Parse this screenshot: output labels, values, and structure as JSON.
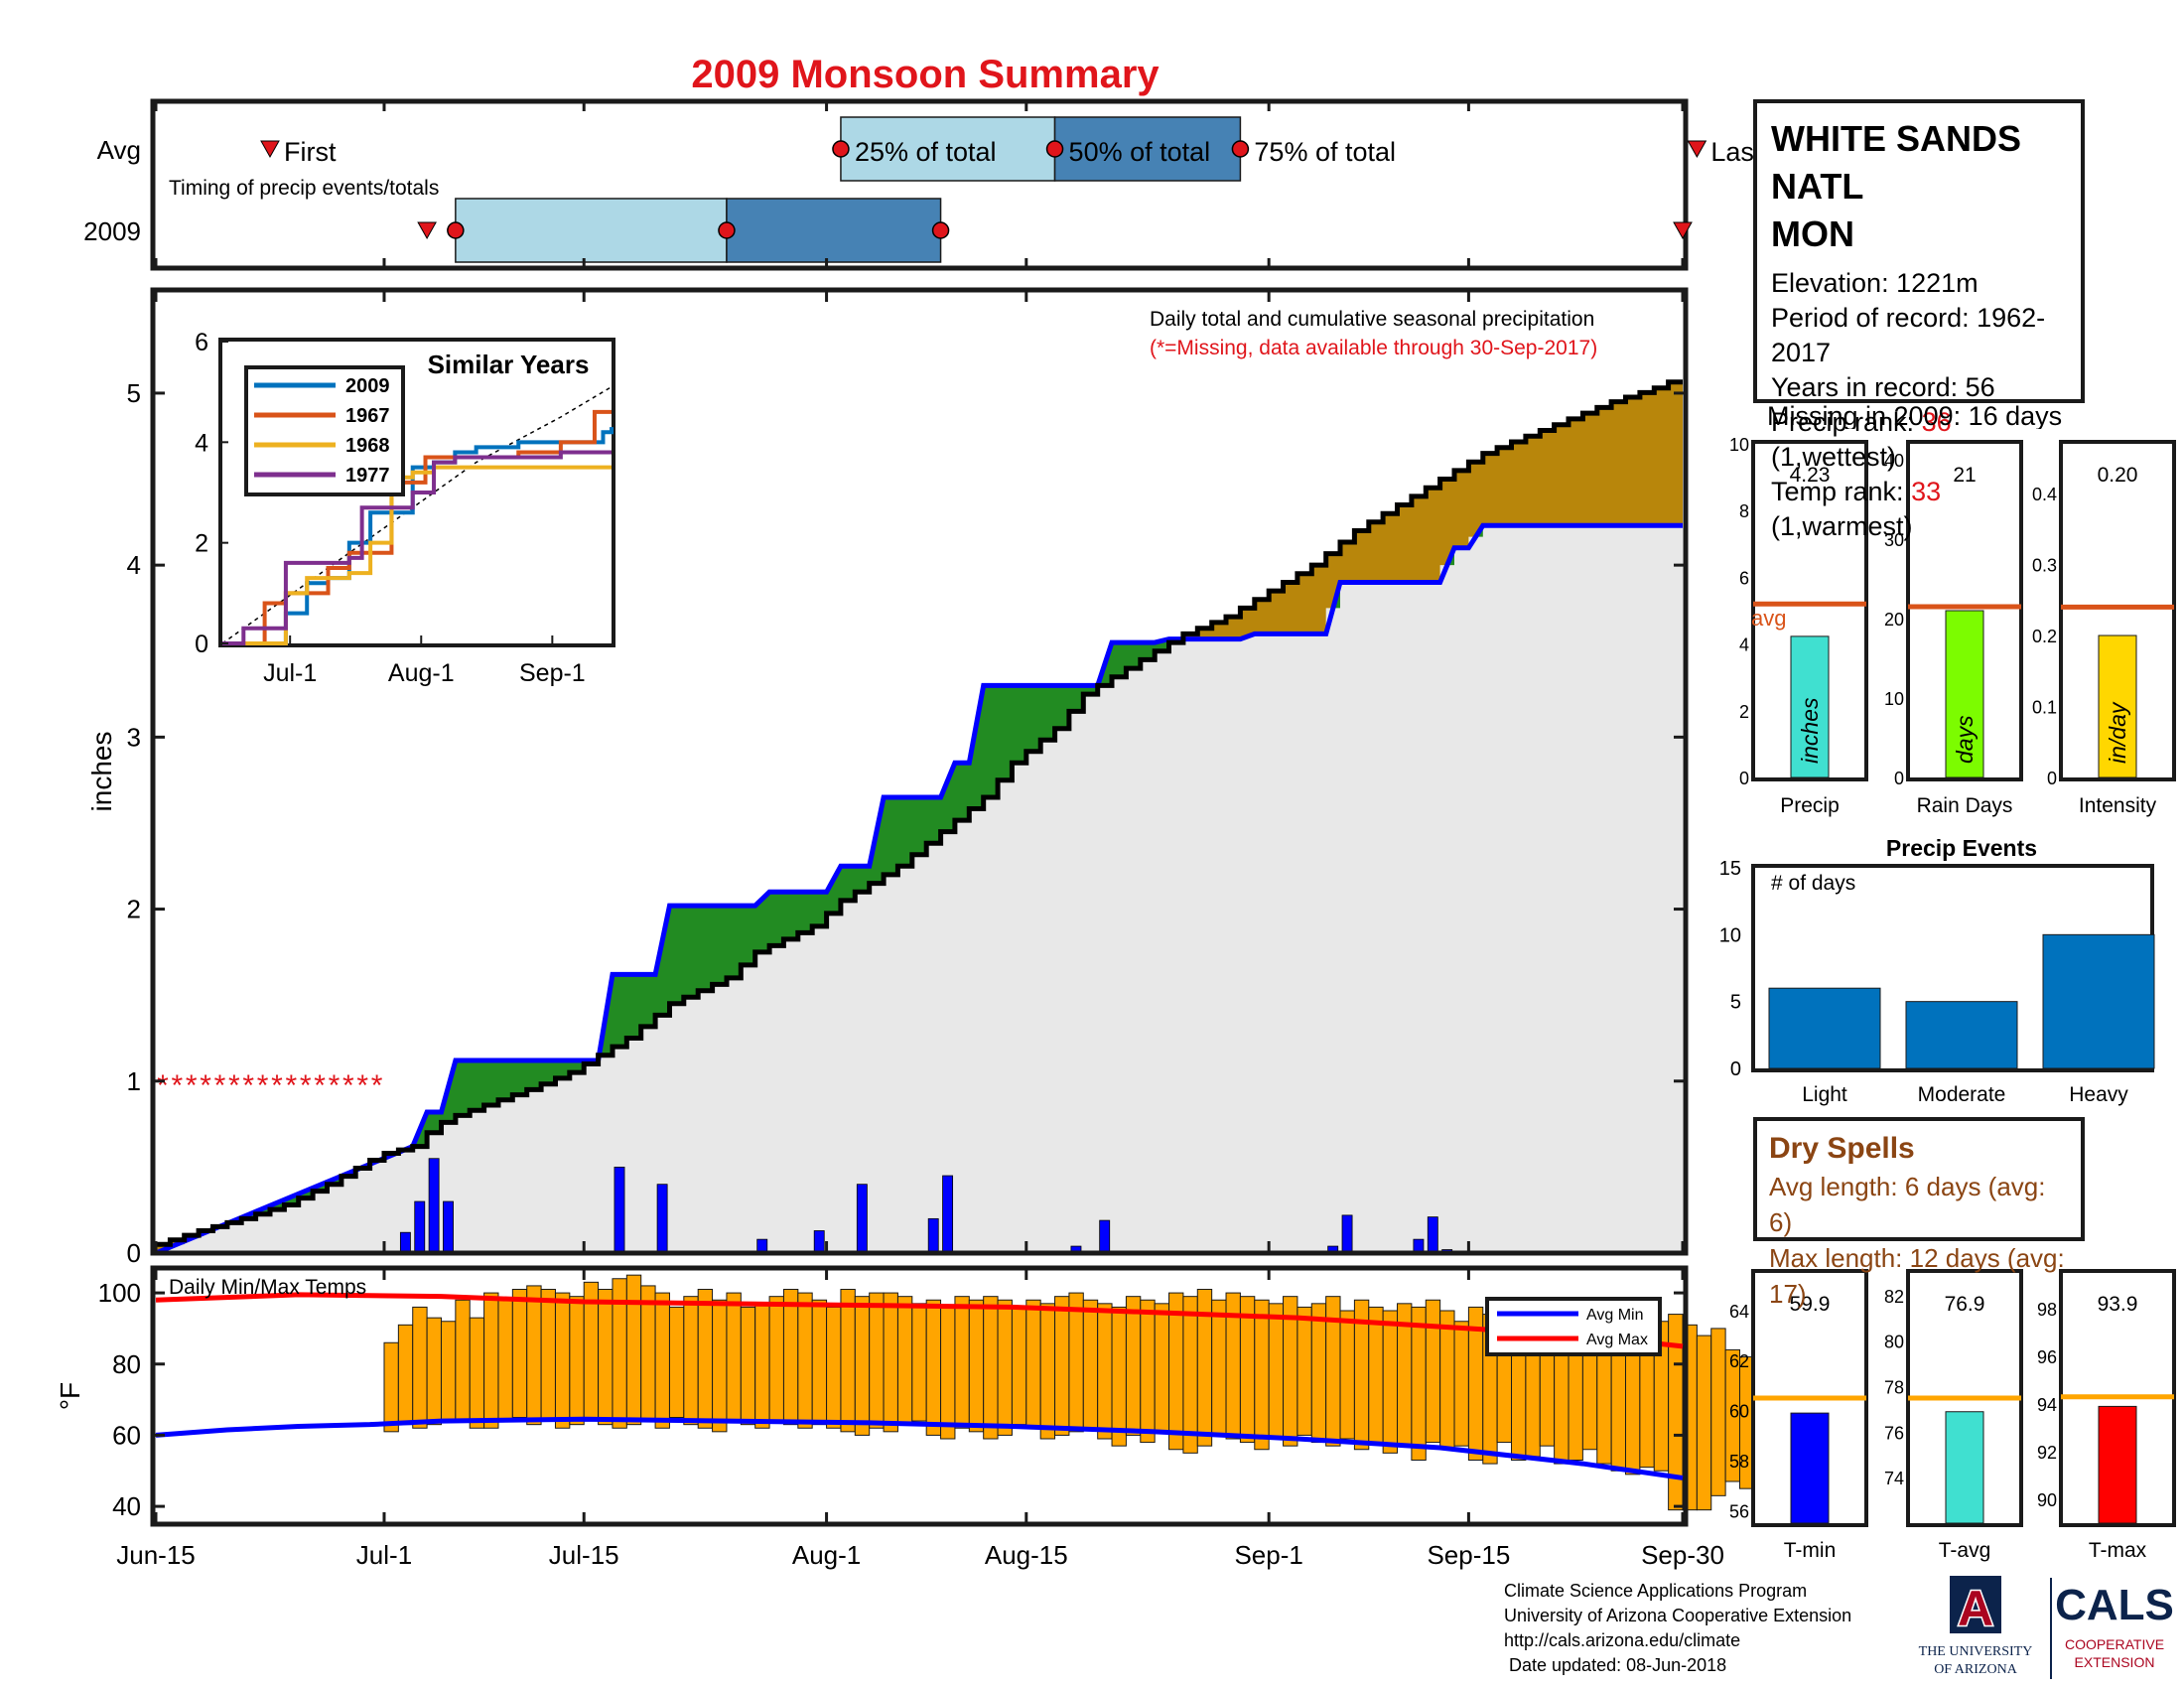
{
  "title": "2009 Monsoon Summary",
  "station": {
    "name_line1": "WHITE SANDS NATL",
    "name_line2": "MON",
    "elevation_label": "Elevation: 1221m",
    "period_label": "Period of record: 1962-2017",
    "years_label": "Years in record: 56",
    "precip_rank_prefix": "Precip rank: ",
    "precip_rank_value": "36",
    "precip_rank_suffix": " (1,wettest)",
    "temp_rank_prefix": "Temp rank: ",
    "temp_rank_value": "33",
    "temp_rank_suffix": " (1,warmest)",
    "missing_label": "Missing in 2009: 16 days"
  },
  "timing": {
    "row_labels": [
      "Avg",
      "2009"
    ],
    "caption": "Timing of precip events/totals",
    "first_label": "First",
    "last_label": "Last",
    "p25_label": "25% of total",
    "p50_label": "50% of total",
    "p75_label": "75% of total",
    "avg": {
      "first": 8,
      "p25": 48,
      "p50": 63,
      "p75": 76,
      "last": 108
    },
    "y2009": {
      "first": 19,
      "p25": 21,
      "p50": 40,
      "p75": 55,
      "last": 107
    }
  },
  "main_chart": {
    "ylabel": "inches",
    "y_ticks": [
      "0",
      "1",
      "2",
      "3",
      "4",
      "5"
    ],
    "x_ticks": [
      "Jun-15",
      "Jul-1",
      "Jul-15",
      "Aug-1",
      "Aug-15",
      "Sep-1",
      "Sep-15",
      "Sep-30"
    ],
    "caption_line1": "Daily total and cumulative seasonal precipitation",
    "caption_line2": "(*=Missing, data available through 30-Sep-2017)",
    "missing_marker": "*"
  },
  "inset": {
    "title": "Similar Years",
    "y_ticks": [
      "0",
      "2",
      "4",
      "6"
    ],
    "x_ticks": [
      "Jul-1",
      "Aug-1",
      "Sep-1"
    ],
    "legend": [
      "2009",
      "1967",
      "1968",
      "1977"
    ]
  },
  "temps": {
    "caption": "Daily Min/Max Temps",
    "ylabel": "°F",
    "y_ticks": [
      "40",
      "60",
      "80",
      "100"
    ],
    "legend_min": "Avg Min",
    "legend_max": "Avg Max"
  },
  "mini_bars": [
    {
      "label": "Precip",
      "value_text": "4.23",
      "bar_text": "inches",
      "avg_text": "avg",
      "y_ticks": [
        "0",
        "2",
        "4",
        "6",
        "8",
        "10"
      ]
    },
    {
      "label": "Rain Days",
      "value_text": "21",
      "bar_text": "days",
      "y_ticks": [
        "0",
        "10",
        "20",
        "30",
        "40"
      ]
    },
    {
      "label": "Intensity",
      "value_text": "0.20",
      "bar_text": "in/day",
      "y_ticks": [
        "0",
        "0.1",
        "0.2",
        "0.3",
        "0.4"
      ]
    }
  ],
  "events": {
    "title": "Precip Events",
    "caption": "# of days",
    "y_ticks": [
      "0",
      "5",
      "10",
      "15"
    ],
    "categories": [
      "Light",
      "Moderate",
      "Heavy"
    ]
  },
  "temp_bars": [
    {
      "label": "T-min",
      "value_text": "59.9",
      "y_ticks": [
        "56",
        "58",
        "60",
        "62",
        "64"
      ]
    },
    {
      "label": "T-avg",
      "value_text": "76.9",
      "y_ticks": [
        "74",
        "76",
        "78",
        "80",
        "82"
      ]
    },
    {
      "label": "T-max",
      "value_text": "93.9",
      "y_ticks": [
        "90",
        "92",
        "94",
        "96",
        "98"
      ]
    }
  ],
  "dry_spells": {
    "title": "Dry Spells",
    "avg_line": "Avg length: 6 days (avg: 6)",
    "max_line": "Max length: 12 days (avg: 17)"
  },
  "credits": {
    "line1": "Climate Science Applications Program",
    "line2": "University of Arizona Cooperative Extension",
    "line3": "http://cals.arizona.edu/climate",
    "line4": " Date updated: 08-Jun-2018"
  },
  "logos": {
    "ua_letter": "A",
    "ua_line1": "THE UNIVERSITY",
    "ua_line2": "OF ARIZONA",
    "cals_word": "CALS",
    "cals_line1": "COOPERATIVE",
    "cals_line2": "EXTENSION"
  },
  "colors": {
    "title_red": "#e0151b",
    "light_blue": "#add8e6",
    "steel_blue": "#4682b4",
    "cum_fill_brown": "#b8860b",
    "cum_fill_green": "#228b22",
    "avg_fill_grey": "#e8e8e8",
    "avg_line_blue": "#0000ff",
    "daily_bar_blue": "#0000ff",
    "temp_bar_orange": "#ffa500",
    "avg_max_red": "#ff0000",
    "avg_min_blue": "#0000ff",
    "avg_marker_orange": "#d95319",
    "ua_navy": "#0c234b",
    "ua_red": "#ab0520"
  },
  "chart_data": [
    {
      "type": "area",
      "title": "Daily total and cumulative seasonal precipitation",
      "ylabel": "inches",
      "ylim": [
        0,
        5.6
      ],
      "x_start": "Jun-15",
      "x_end": "Sep-30",
      "series": [
        {
          "name": "",
          "x": [
            0,
            3,
            6,
            9,
            12,
            15,
            16,
            18,
            19,
            20,
            21,
            26,
            29,
            33,
            36,
            40,
            42,
            46,
            48,
            52,
            55,
            58,
            60,
            63,
            65,
            68,
            70,
            72,
            75,
            78,
            81,
            84,
            87,
            90,
            93,
            96,
            99,
            102,
            105,
            107
          ],
          "y": [
            0.05,
            0.13,
            0.2,
            0.28,
            0.4,
            0.54,
            0.58,
            0.62,
            0.7,
            0.76,
            0.8,
            0.95,
            1.05,
            1.25,
            1.45,
            1.6,
            1.75,
            1.9,
            2.05,
            2.25,
            2.45,
            2.65,
            2.85,
            3.05,
            3.25,
            3.4,
            3.5,
            3.6,
            3.7,
            3.85,
            4.0,
            4.2,
            4.35,
            4.5,
            4.65,
            4.75,
            4.85,
            4.95,
            5.03,
            5.1
          ]
        },
        {
          "name": "",
          "x": [
            0,
            18,
            19,
            20,
            21,
            31,
            32,
            35,
            36,
            42,
            43,
            47,
            48,
            50,
            51,
            55,
            56,
            57,
            58,
            66,
            67,
            70,
            71,
            76,
            77,
            82,
            83,
            90,
            91,
            92,
            93,
            107
          ],
          "y": [
            0.0,
            0.62,
            0.82,
            0.82,
            1.12,
            1.12,
            1.62,
            1.62,
            2.02,
            2.02,
            2.1,
            2.1,
            2.25,
            2.25,
            2.65,
            2.65,
            2.85,
            2.85,
            3.3,
            3.3,
            3.55,
            3.55,
            3.57,
            3.57,
            3.6,
            3.6,
            3.9,
            3.9,
            4.1,
            4.1,
            4.23,
            4.23
          ]
        }
      ],
      "daily_precip": [
        {
          "x": 17,
          "y": 0.12
        },
        {
          "x": 18,
          "y": 0.3
        },
        {
          "x": 19,
          "y": 0.55
        },
        {
          "x": 20,
          "y": 0.3
        },
        {
          "x": 32,
          "y": 0.5
        },
        {
          "x": 35,
          "y": 0.4
        },
        {
          "x": 42,
          "y": 0.08
        },
        {
          "x": 46,
          "y": 0.13
        },
        {
          "x": 49,
          "y": 0.4
        },
        {
          "x": 54,
          "y": 0.2
        },
        {
          "x": 55,
          "y": 0.45
        },
        {
          "x": 64,
          "y": 0.04
        },
        {
          "x": 66,
          "y": 0.19
        },
        {
          "x": 77,
          "y": 0.01
        },
        {
          "x": 82,
          "y": 0.04
        },
        {
          "x": 83,
          "y": 0.22
        },
        {
          "x": 88,
          "y": 0.08
        },
        {
          "x": 89,
          "y": 0.21
        },
        {
          "x": 90,
          "y": 0.02
        }
      ],
      "missing_days": [
        0,
        1,
        2,
        3,
        4,
        5,
        6,
        7,
        8,
        9,
        10,
        11,
        12,
        13,
        14,
        15
      ]
    },
    {
      "type": "line",
      "title": "Similar Years",
      "ylim": [
        0,
        6
      ],
      "series": [
        {
          "name": "2009",
          "x": [
            0,
            15,
            20,
            25,
            30,
            35,
            45,
            50,
            55,
            60,
            70,
            80,
            90,
            92
          ],
          "y": [
            0,
            0.6,
            1.2,
            1.3,
            2.0,
            2.6,
            3.5,
            3.6,
            3.8,
            3.9,
            4.0,
            4.0,
            4.2,
            4.3
          ]
        },
        {
          "name": "1967",
          "x": [
            0,
            10,
            15,
            20,
            25,
            30,
            40,
            48,
            55,
            60,
            70,
            80,
            88,
            92
          ],
          "y": [
            0,
            0.8,
            1.0,
            1.0,
            1.5,
            1.8,
            3.2,
            3.7,
            3.7,
            3.7,
            3.8,
            4.0,
            4.6,
            4.6
          ]
        },
        {
          "name": "1968",
          "x": [
            0,
            12,
            15,
            20,
            30,
            35,
            40,
            45,
            50,
            60,
            70,
            80,
            92
          ],
          "y": [
            0,
            0,
            1.0,
            1.3,
            1.4,
            2.0,
            3.3,
            3.4,
            3.5,
            3.5,
            3.5,
            3.5,
            3.5
          ]
        },
        {
          "name": "1977",
          "x": [
            0,
            5,
            15,
            20,
            30,
            33,
            40,
            45,
            50,
            55,
            60,
            70,
            80,
            92
          ],
          "y": [
            0,
            0.3,
            1.6,
            1.6,
            1.7,
            2.7,
            2.7,
            3.0,
            3.6,
            3.7,
            3.7,
            3.7,
            3.8,
            3.8
          ]
        }
      ],
      "avg_x": [
        0,
        20,
        40,
        60,
        80,
        92
      ],
      "avg_y": [
        0,
        1.2,
        2.4,
        3.6,
        4.5,
        5.1
      ]
    },
    {
      "type": "bar",
      "title": "Daily Min/Max Temps",
      "ylabel": "°F",
      "ylim": [
        35,
        107
      ],
      "first_day": 16,
      "max": [
        86,
        91,
        96,
        93,
        92,
        98,
        93,
        100,
        98,
        101,
        102,
        101,
        100,
        99,
        103,
        101,
        104,
        105,
        102,
        100,
        96,
        99,
        101,
        98,
        100,
        96,
        97,
        99,
        101,
        100,
        98,
        96,
        101,
        99,
        100,
        100,
        99,
        97,
        98,
        96,
        99,
        98,
        99,
        98,
        96,
        98,
        97,
        99,
        100,
        98,
        97,
        96,
        99,
        98,
        97,
        100,
        99,
        101,
        98,
        100,
        99,
        98,
        97,
        99,
        96,
        97,
        99,
        95,
        98,
        96,
        95,
        97,
        96,
        98,
        95,
        92,
        96,
        94,
        92,
        95,
        91,
        97,
        96,
        92,
        95,
        93,
        97,
        91,
        89,
        92,
        94,
        91,
        88,
        90,
        84,
        82,
        88,
        91,
        84,
        87,
        85,
        92
      ],
      "min": [
        61,
        63,
        62,
        63,
        64,
        64,
        62,
        62,
        64,
        65,
        63,
        64,
        62,
        63,
        64,
        63,
        62,
        63,
        64,
        62,
        65,
        63,
        62,
        61,
        64,
        63,
        62,
        64,
        63,
        62,
        63,
        62,
        61,
        60,
        62,
        61,
        63,
        64,
        60,
        59,
        62,
        61,
        59,
        60,
        63,
        62,
        59,
        60,
        61,
        62,
        59,
        57,
        60,
        58,
        61,
        56,
        55,
        57,
        60,
        59,
        58,
        56,
        59,
        57,
        60,
        58,
        57,
        59,
        56,
        58,
        55,
        57,
        53,
        58,
        56,
        57,
        53,
        52,
        58,
        53,
        54,
        57,
        52,
        53,
        56,
        52,
        50,
        49,
        51,
        50,
        39,
        39,
        39,
        43,
        47,
        45,
        46,
        43,
        44,
        43,
        45,
        47
      ],
      "avg_max_x": [
        0,
        10,
        20,
        30,
        40,
        50,
        60,
        70,
        80,
        90,
        100,
        107
      ],
      "avg_max_y": [
        98,
        99.5,
        99,
        97.5,
        97,
        96.5,
        96,
        94.5,
        93,
        90.5,
        88,
        85
      ],
      "avg_min_x": [
        0,
        5,
        10,
        15,
        20,
        30,
        40,
        50,
        60,
        70,
        80,
        90,
        100,
        107
      ],
      "avg_min_y": [
        60,
        61.5,
        62.5,
        63,
        64,
        64.5,
        64,
        63.5,
        62.5,
        61,
        59,
        56.5,
        52,
        48
      ]
    },
    {
      "type": "bar",
      "title": "Precip Events",
      "categories": [
        "Light",
        "Moderate",
        "Heavy"
      ],
      "values": [
        6,
        5,
        10
      ],
      "ylim": [
        0,
        15
      ]
    },
    {
      "type": "bar",
      "categories": [
        "Precip",
        "Rain Days",
        "Intensity"
      ],
      "values": [
        4.23,
        21,
        0.2
      ],
      "averages": [
        5.2,
        21.5,
        0.24
      ]
    },
    {
      "type": "bar",
      "categories": [
        "T-min",
        "T-avg",
        "T-max"
      ],
      "values": [
        59.9,
        76.9,
        93.9
      ],
      "averages": [
        60.5,
        77.5,
        94.3
      ]
    }
  ]
}
